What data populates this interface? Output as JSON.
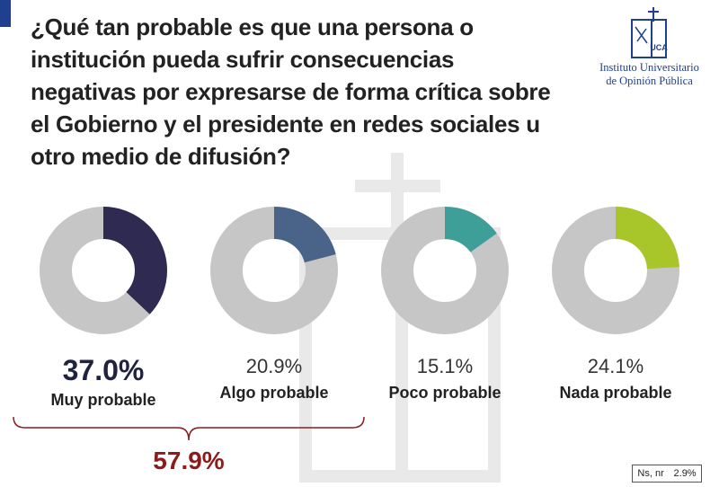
{
  "question": {
    "lines": [
      "¿Qué tan probable es que una persona o",
      "institución pueda sufrir consecuencias",
      "negativas por expresarse de forma crítica sobre",
      "el Gobierno y el presidente en redes sociales u",
      "otro medio de difusión?"
    ]
  },
  "logo": {
    "mark_text": "UCA",
    "line1": "Instituto Universitario",
    "line2": "de Opinión Pública"
  },
  "combined": {
    "value": "57.9%"
  },
  "nonresponse": {
    "label": "Ns, nr",
    "value": "2.9%"
  },
  "colors": {
    "track": "#c6c6c6",
    "accent": "#1f3f8f",
    "combined": "#8b1c1c"
  },
  "chart_data": {
    "type": "pie",
    "style": "donut",
    "categories": [
      "Muy probable",
      "Algo probable",
      "Poco probable",
      "Nada probable"
    ],
    "values": [
      37.0,
      20.9,
      15.1,
      24.1
    ],
    "value_labels": [
      "37.0%",
      "20.9%",
      "15.1%",
      "24.1%"
    ],
    "colors": [
      "#2e2a52",
      "#4a6389",
      "#3d9f98",
      "#a8c52a"
    ],
    "unit": "%",
    "annotations": [
      {
        "text": "57.9%",
        "spans": [
          "Muy probable",
          "Algo probable"
        ]
      },
      {
        "text": "Ns, nr 2.9%"
      }
    ]
  }
}
